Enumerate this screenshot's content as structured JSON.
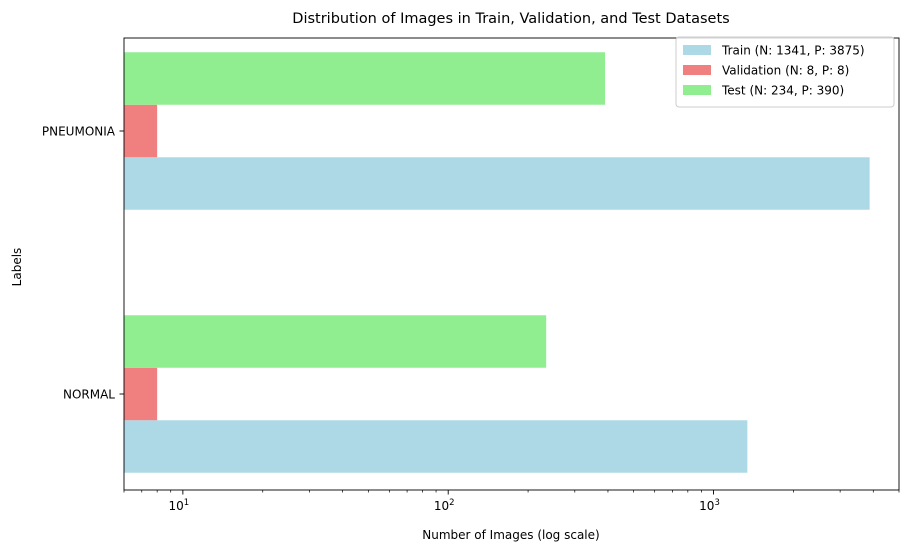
{
  "chart_data": {
    "type": "bar",
    "orientation": "horizontal",
    "title": "Distribution of Images in Train, Validation, and Test Datasets",
    "xlabel": "Number of Images (log scale)",
    "ylabel": "Labels",
    "x_scale": "log",
    "xlim": [
      6,
      5000
    ],
    "categories": [
      "NORMAL",
      "PNEUMONIA"
    ],
    "series": [
      {
        "name": "Train (N: 1341, P: 3875)",
        "values": [
          1341,
          3875
        ],
        "color": "#add8e6"
      },
      {
        "name": "Validation (N: 8, P: 8)",
        "values": [
          8,
          8
        ],
        "color": "#f08080"
      },
      {
        "name": "Test (N: 234, P: 390)",
        "values": [
          234,
          390
        ],
        "color": "#90ee90"
      }
    ],
    "x_ticks": [
      {
        "value": 10,
        "base": "10",
        "exp": "1"
      },
      {
        "value": 100,
        "base": "10",
        "exp": "2"
      },
      {
        "value": 1000,
        "base": "10",
        "exp": "3"
      }
    ],
    "grid": false,
    "legend_position": "top-right"
  }
}
